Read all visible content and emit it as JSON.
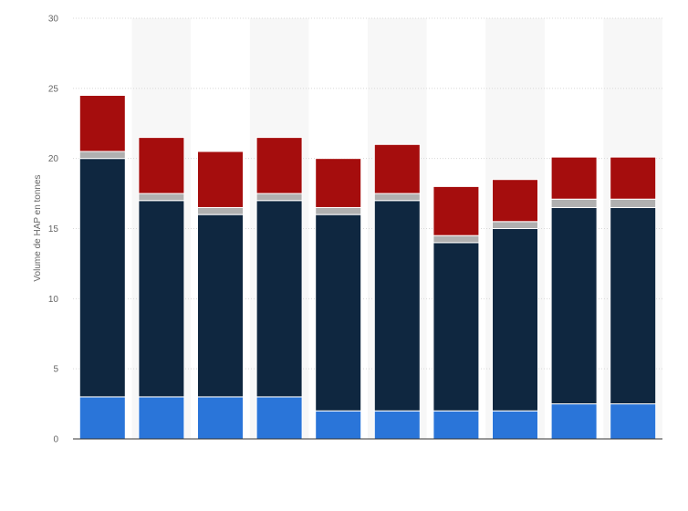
{
  "chart_data": {
    "type": "bar",
    "stacked": true,
    "title": "",
    "xlabel": "",
    "ylabel": "Volume de HAP en tonnes",
    "ylim": [
      0,
      30
    ],
    "yticks": [
      0,
      5,
      10,
      15,
      20,
      25,
      30
    ],
    "categories": [
      "",
      "",
      "",
      "",
      "",
      "",
      "",
      "",
      "",
      ""
    ],
    "grid": true,
    "legend": "none",
    "colors": [
      "#2a75d9",
      "#0f2740",
      "#b0b0b0",
      "#a50d0d"
    ],
    "series": [
      {
        "values": [
          3,
          3,
          3,
          3,
          2,
          2,
          2,
          2,
          2.5,
          2.5
        ]
      },
      {
        "values": [
          17,
          14,
          13,
          14,
          14,
          15,
          12,
          13,
          14,
          14
        ]
      },
      {
        "values": [
          0.5,
          0.5,
          0.5,
          0.5,
          0.5,
          0.5,
          0.5,
          0.5,
          0.6,
          0.6
        ]
      },
      {
        "values": [
          4,
          4,
          4,
          4,
          3.5,
          3.5,
          3.5,
          3,
          3,
          3
        ]
      }
    ]
  }
}
